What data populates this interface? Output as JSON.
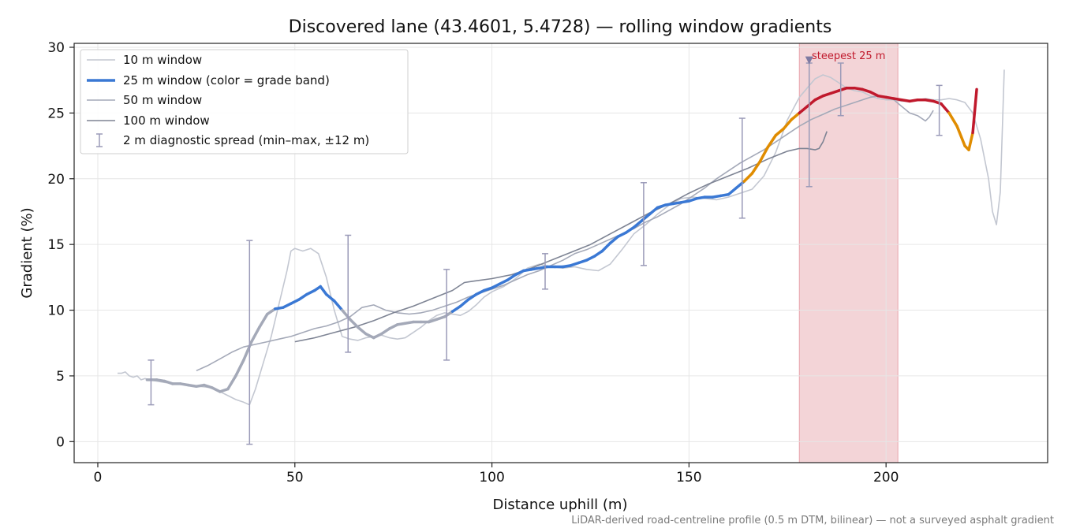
{
  "chart_data": {
    "type": "line",
    "title": "Discovered lane (43.4601, 5.4728) — rolling window gradients",
    "xlabel": "Distance uphill (m)",
    "ylabel": "Gradient (%)",
    "xlim": [
      -6,
      241
    ],
    "ylim": [
      -1.6,
      30.3
    ],
    "xticks": [
      0,
      50,
      100,
      150,
      200
    ],
    "yticks": [
      0,
      5,
      10,
      15,
      20,
      25,
      30
    ],
    "grid": true,
    "legend_position": "top-left",
    "footnote": "LiDAR-derived road-centreline profile (0.5 m DTM, bilinear) — not a surveyed asphalt gradient",
    "highlight": {
      "label": "steepest 25 m",
      "x_range": [
        178,
        203
      ],
      "color": "#f3d4d7",
      "marker_x": 180.5,
      "marker_y": 29.0
    },
    "grade_band_colors": {
      "under_10": "#a4a9b8",
      "10_to_20": "#3a78d4",
      "20_to_25": "#e08c00",
      "over_25": "#c0192c"
    },
    "series": [
      {
        "name": "10 m window",
        "color": "#c3c7d1",
        "x": [
          5,
          6,
          7,
          8,
          9,
          10,
          11,
          12,
          13,
          15,
          17,
          20,
          23,
          26,
          29,
          31,
          33,
          35,
          37,
          38.5,
          40,
          42,
          44,
          46,
          48,
          49,
          50,
          52,
          54,
          56,
          58,
          60,
          62,
          64,
          66,
          68,
          70,
          72,
          74,
          76,
          78,
          80,
          82,
          84,
          86,
          88,
          90,
          92,
          94,
          96,
          98,
          100,
          103,
          106,
          109,
          112,
          115,
          118,
          121,
          124,
          127,
          130,
          133,
          136,
          139,
          142,
          145,
          148,
          151,
          154,
          157,
          160,
          163,
          166,
          169,
          172,
          175,
          178,
          180,
          182,
          184,
          186,
          188,
          190,
          192,
          194,
          196,
          198,
          200,
          202,
          204,
          206,
          208,
          210,
          212,
          214,
          216,
          218,
          220,
          222,
          224,
          226,
          227,
          228,
          229,
          230
        ],
        "y": [
          5.2,
          5.2,
          5.3,
          5.0,
          4.9,
          5.0,
          4.7,
          4.8,
          4.7,
          4.6,
          4.5,
          4.4,
          4.3,
          4.2,
          4.1,
          3.8,
          3.5,
          3.2,
          3.0,
          2.8,
          4.0,
          6.0,
          8.0,
          10.5,
          13.0,
          14.5,
          14.7,
          14.5,
          14.7,
          14.3,
          12.5,
          10.0,
          8.0,
          7.8,
          7.7,
          7.9,
          8.0,
          8.1,
          7.9,
          7.8,
          7.9,
          8.3,
          8.7,
          9.2,
          9.6,
          9.8,
          9.7,
          9.6,
          9.9,
          10.4,
          11.0,
          11.4,
          11.8,
          12.4,
          13.2,
          13.5,
          13.3,
          13.2,
          13.3,
          13.1,
          13.0,
          13.5,
          14.6,
          15.8,
          16.5,
          17.3,
          18.0,
          18.5,
          18.6,
          18.5,
          18.4,
          18.6,
          18.9,
          19.2,
          20.2,
          22.0,
          24.5,
          26.2,
          26.9,
          27.6,
          27.9,
          27.7,
          27.3,
          26.9,
          26.7,
          26.6,
          26.3,
          26.1,
          26.0,
          26.0,
          25.9,
          25.9,
          26.0,
          26.1,
          26.0,
          26.0,
          26.1,
          26.0,
          25.8,
          25.0,
          23.0,
          20.0,
          17.5,
          16.5,
          19.0,
          28.3
        ]
      },
      {
        "name": "25 m window (color = grade band)",
        "color": "#3a78d4",
        "x": [
          12.5,
          15,
          17,
          19,
          21,
          23,
          25,
          27,
          29,
          31,
          33,
          35,
          37,
          39,
          41,
          43,
          45,
          47,
          49,
          51,
          53,
          55,
          56.5,
          58,
          60,
          62,
          64,
          66,
          68,
          70,
          72,
          74,
          76,
          78,
          80,
          82,
          84,
          86,
          88,
          90,
          92,
          94,
          96,
          98,
          100,
          102,
          104,
          106,
          108,
          110,
          112,
          114,
          116,
          118,
          120,
          122,
          124,
          126,
          128,
          130,
          132,
          134,
          136,
          138,
          140,
          142,
          144,
          146,
          148,
          150,
          152,
          154,
          156,
          158,
          160,
          162,
          164,
          166,
          168,
          170,
          172,
          174,
          176,
          178,
          180,
          182,
          184,
          186,
          188,
          190,
          192,
          194,
          196,
          198,
          200,
          202,
          204,
          206,
          208,
          210,
          212,
          214,
          216,
          218,
          220,
          221,
          222,
          223
        ],
        "y": [
          4.7,
          4.7,
          4.6,
          4.4,
          4.4,
          4.3,
          4.2,
          4.3,
          4.1,
          3.8,
          4.0,
          5.0,
          6.2,
          7.6,
          8.7,
          9.7,
          10.1,
          10.2,
          10.5,
          10.8,
          11.2,
          11.5,
          11.8,
          11.2,
          10.7,
          10.0,
          9.3,
          8.7,
          8.2,
          7.9,
          8.2,
          8.6,
          8.9,
          9.0,
          9.1,
          9.1,
          9.1,
          9.3,
          9.5,
          9.9,
          10.3,
          10.8,
          11.2,
          11.5,
          11.7,
          12.0,
          12.3,
          12.7,
          13.0,
          13.1,
          13.2,
          13.3,
          13.3,
          13.3,
          13.4,
          13.6,
          13.8,
          14.1,
          14.5,
          15.1,
          15.6,
          15.9,
          16.3,
          16.8,
          17.3,
          17.8,
          18.0,
          18.1,
          18.2,
          18.3,
          18.5,
          18.6,
          18.6,
          18.7,
          18.8,
          19.3,
          19.8,
          20.4,
          21.3,
          22.4,
          23.3,
          23.8,
          24.5,
          25.0,
          25.5,
          26.0,
          26.3,
          26.5,
          26.7,
          26.9,
          26.9,
          26.8,
          26.6,
          26.3,
          26.2,
          26.1,
          26.0,
          25.9,
          26.0,
          26.0,
          25.9,
          25.7,
          25.0,
          24.0,
          22.5,
          22.2,
          23.5,
          26.8
        ]
      },
      {
        "name": "50 m window",
        "color": "#a4a9b8",
        "x": [
          25,
          28,
          31,
          34,
          37,
          40,
          43,
          46,
          49,
          52,
          55,
          58,
          61,
          64,
          67,
          70,
          73,
          76,
          79,
          82,
          85,
          88,
          91,
          94,
          97,
          100,
          103,
          106,
          109,
          112,
          115,
          118,
          121,
          124,
          127,
          130,
          133,
          136,
          139,
          142,
          145,
          148,
          151,
          154,
          157,
          160,
          163,
          166,
          169,
          172,
          175,
          178,
          181,
          184,
          187,
          190,
          193,
          196,
          198,
          200,
          202,
          204,
          206,
          208,
          210,
          211,
          212
        ],
        "y": [
          5.4,
          5.8,
          6.3,
          6.8,
          7.2,
          7.4,
          7.6,
          7.8,
          8.0,
          8.3,
          8.6,
          8.8,
          9.1,
          9.5,
          10.2,
          10.4,
          10.0,
          9.8,
          9.7,
          9.8,
          10.0,
          10.3,
          10.6,
          11.0,
          11.3,
          11.6,
          11.9,
          12.3,
          12.7,
          13.0,
          13.4,
          13.8,
          14.3,
          14.6,
          15.0,
          15.4,
          15.8,
          16.2,
          16.7,
          17.1,
          17.6,
          18.1,
          18.7,
          19.3,
          20.0,
          20.6,
          21.2,
          21.7,
          22.2,
          22.8,
          23.4,
          24.0,
          24.5,
          24.9,
          25.3,
          25.6,
          25.9,
          26.2,
          26.3,
          26.2,
          26.0,
          25.5,
          25.0,
          24.8,
          24.4,
          24.7,
          25.2
        ]
      },
      {
        "name": "100 m window",
        "color": "#7e8494",
        "x": [
          50,
          55,
          60,
          65,
          70,
          75,
          80,
          85,
          90,
          93,
          95,
          100,
          105,
          110,
          115,
          120,
          125,
          130,
          135,
          140,
          145,
          150,
          155,
          160,
          165,
          170,
          175,
          178,
          180,
          182,
          183,
          184,
          185
        ],
        "y": [
          7.6,
          7.9,
          8.3,
          8.7,
          9.2,
          9.8,
          10.3,
          10.9,
          11.5,
          12.1,
          12.2,
          12.4,
          12.7,
          13.2,
          13.8,
          14.4,
          15.0,
          15.8,
          16.6,
          17.4,
          18.1,
          18.9,
          19.6,
          20.2,
          20.8,
          21.5,
          22.1,
          22.3,
          22.3,
          22.2,
          22.3,
          22.8,
          23.6
        ]
      }
    ],
    "diagnostic": {
      "name": "2 m diagnostic spread (min–max, ±12 m)",
      "color": "#9a9ab8",
      "points": [
        {
          "x": 13.5,
          "low": 2.8,
          "high": 6.2
        },
        {
          "x": 38.5,
          "low": -0.2,
          "high": 15.3
        },
        {
          "x": 63.5,
          "low": 6.8,
          "high": 15.7
        },
        {
          "x": 88.5,
          "low": 6.2,
          "high": 13.1
        },
        {
          "x": 113.5,
          "low": 11.6,
          "high": 14.3
        },
        {
          "x": 138.5,
          "low": 13.4,
          "high": 19.7
        },
        {
          "x": 163.5,
          "low": 17.0,
          "high": 24.6
        },
        {
          "x": 180.5,
          "low": 19.4,
          "high": 28.8
        },
        {
          "x": 188.5,
          "low": 24.8,
          "high": 28.8
        },
        {
          "x": 213.5,
          "low": 23.3,
          "high": 27.1
        }
      ]
    }
  }
}
